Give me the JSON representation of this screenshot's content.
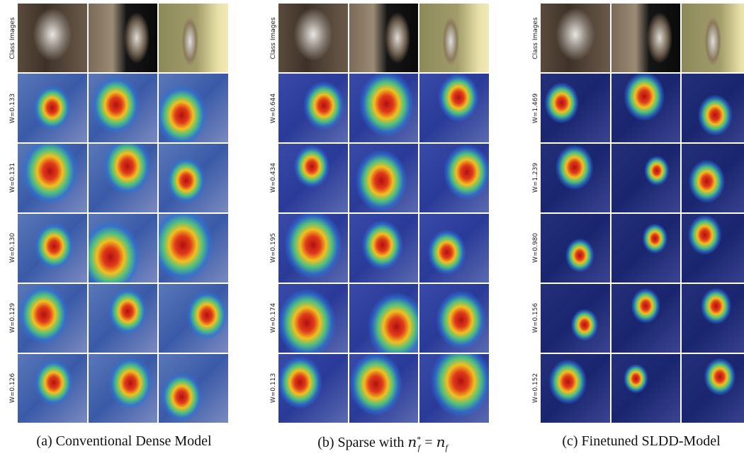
{
  "panels": [
    {
      "row_labels": [
        "Class Images",
        "W=0.133",
        "W=0.131",
        "W=0.130",
        "W=0.129",
        "W=0.126"
      ],
      "caption": {
        "text": "(a) Conventional Dense Model"
      }
    },
    {
      "row_labels": [
        "Class Images",
        "W=0.644",
        "W=0.434",
        "W=0.195",
        "W=0.174",
        "W=0.113"
      ],
      "caption": {
        "text": "(b) Sparse with",
        "lhs": {
          "base": "n",
          "sup": "*",
          "sub": "f"
        },
        "relation": "=",
        "rhs": {
          "base": "n",
          "sub": "f"
        }
      }
    },
    {
      "row_labels": [
        "Class Images",
        "W=1.469",
        "W=1.239",
        "W=0.980",
        "W=0.156",
        "W=0.152"
      ],
      "caption": {
        "text": "(c) Finetuned SLDD-Model"
      }
    }
  ]
}
